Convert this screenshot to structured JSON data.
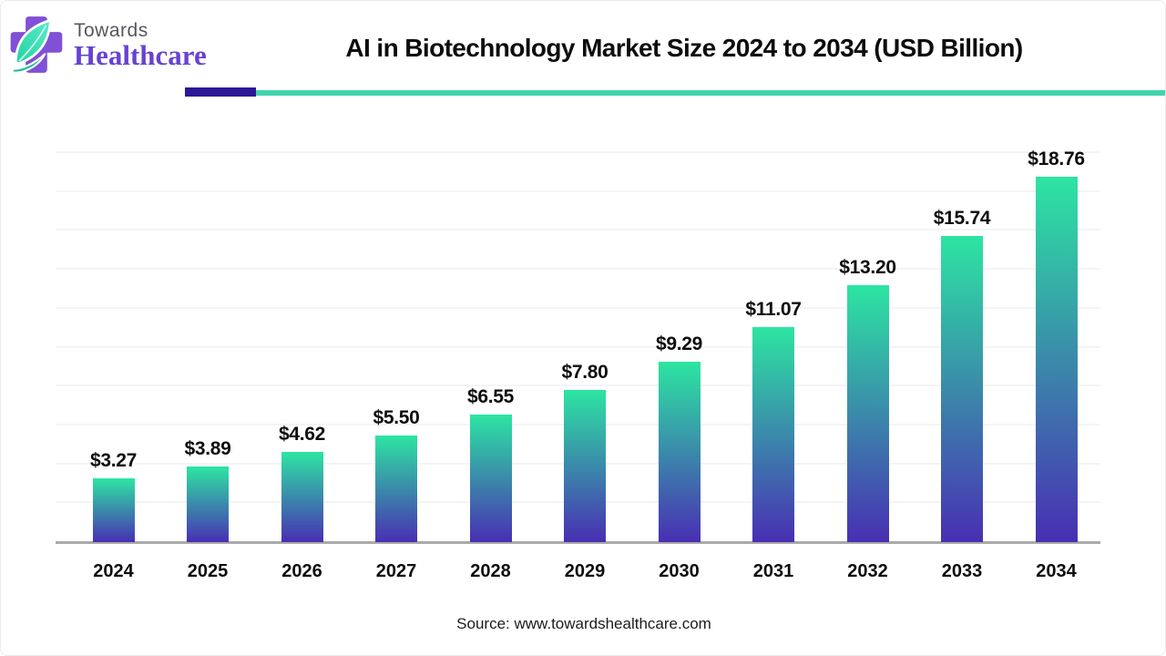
{
  "logo": {
    "towards": "Towards",
    "healthcare": "Healthcare"
  },
  "header": {
    "title": "AI in Biotechnology Market Size 2024 to 2034 (USD Billion)"
  },
  "chart_data": {
    "type": "bar",
    "title": "AI in Biotechnology Market Size 2024 to 2034 (USD Billion)",
    "categories": [
      "2024",
      "2025",
      "2026",
      "2027",
      "2028",
      "2029",
      "2030",
      "2031",
      "2032",
      "2033",
      "2034"
    ],
    "values": [
      3.27,
      3.89,
      4.62,
      5.5,
      6.55,
      7.8,
      9.29,
      11.07,
      13.2,
      15.74,
      18.76
    ],
    "value_labels": [
      "$3.27",
      "$3.89",
      "$4.62",
      "$5.50",
      "$6.55",
      "$7.80",
      "$9.29",
      "$11.07",
      "$13.20",
      "$15.74",
      "$18.76"
    ],
    "xlabel": "",
    "ylabel": "",
    "ylim": [
      0,
      20
    ],
    "gridline_step": 2,
    "grid": "horizontal-faint",
    "legend": "none",
    "bar_gradient_top": "#2de5a2",
    "bar_gradient_bottom": "#482fb3"
  },
  "footer": {
    "source": "Source: www.towardshealthcare.com"
  },
  "colors": {
    "divider_purple": "#2c1798",
    "divider_teal": "#41d3ac",
    "gridline": "#f4f4f4",
    "axis": "#aaaaaa",
    "logo_cross_purple": "#8050d5",
    "logo_leaf_mint": "#43e7c3",
    "logo_leaf_dark_teal": "#16bd9a"
  }
}
